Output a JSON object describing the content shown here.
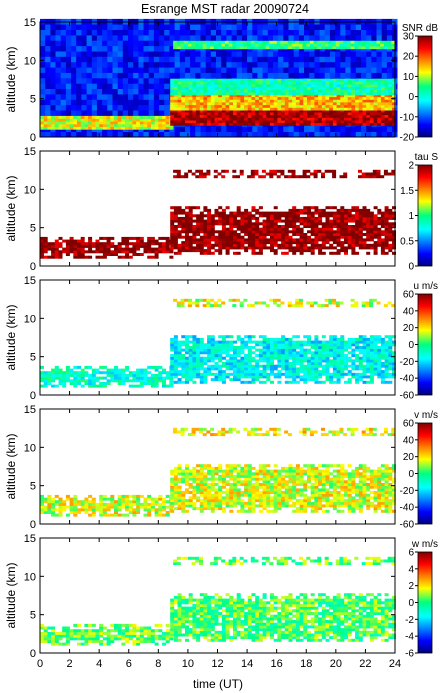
{
  "title": "Esrange MST radar 20090724",
  "xlabel": "time (UT)",
  "x_ticks": [
    0,
    2,
    4,
    6,
    8,
    10,
    12,
    14,
    16,
    18,
    20,
    22,
    24
  ],
  "chart_data": [
    {
      "type": "heatmap",
      "name": "SNR",
      "ylabel": "altitude (km)",
      "xlim": [
        0,
        24
      ],
      "ylim": [
        0,
        15
      ],
      "y_ticks": [
        0,
        5,
        10,
        15
      ],
      "colorbar": {
        "label": "SNR dB",
        "range": [
          -20,
          30
        ],
        "ticks": [
          -20,
          -10,
          0,
          10,
          20,
          30
        ]
      },
      "features": [
        {
          "t": [
            0,
            8.8
          ],
          "alt": [
            1,
            2.5
          ],
          "value": 12
        },
        {
          "t": [
            8.8,
            24
          ],
          "alt": [
            1.5,
            3.5
          ],
          "value": 28
        },
        {
          "t": [
            8.8,
            24
          ],
          "alt": [
            3.5,
            5.5
          ],
          "value": 15
        },
        {
          "t": [
            8.8,
            24
          ],
          "alt": [
            5.5,
            7.5
          ],
          "value": 2
        },
        {
          "t": [
            9,
            24
          ],
          "alt": [
            11.5,
            12.5
          ],
          "value": 5
        }
      ],
      "background_value": -14
    },
    {
      "type": "heatmap",
      "name": "tau",
      "ylabel": "altitude (km)",
      "xlim": [
        0,
        24
      ],
      "ylim": [
        0,
        15
      ],
      "y_ticks": [
        0,
        5,
        10,
        15
      ],
      "colorbar": {
        "label": "tau S",
        "range": [
          0,
          2
        ],
        "ticks": [
          0,
          0.5,
          1,
          1.5,
          2
        ]
      },
      "features": [
        {
          "t": [
            0,
            8.8
          ],
          "alt": [
            1,
            3.5
          ],
          "value": 2
        },
        {
          "t": [
            8.8,
            24
          ],
          "alt": [
            1.5,
            7.5
          ],
          "value": 2
        },
        {
          "t": [
            9,
            24
          ],
          "alt": [
            11.5,
            12.5
          ],
          "value": 2
        }
      ]
    },
    {
      "type": "heatmap",
      "name": "u",
      "ylabel": "altitude (km)",
      "xlim": [
        0,
        24
      ],
      "ylim": [
        0,
        15
      ],
      "y_ticks": [
        0,
        5,
        10,
        15
      ],
      "colorbar": {
        "label": "u m/s",
        "range": [
          -60,
          60
        ],
        "ticks": [
          -60,
          -40,
          -20,
          0,
          20,
          40,
          60
        ]
      },
      "features": [
        {
          "t": [
            0,
            8.8
          ],
          "alt": [
            1,
            3.5
          ],
          "value": -10
        },
        {
          "t": [
            8.8,
            24
          ],
          "alt": [
            1.5,
            7.5
          ],
          "value": -15
        },
        {
          "t": [
            9,
            24
          ],
          "alt": [
            11.5,
            12.5
          ],
          "value": 15
        }
      ]
    },
    {
      "type": "heatmap",
      "name": "v",
      "ylabel": "altitude (km)",
      "xlim": [
        0,
        24
      ],
      "ylim": [
        0,
        15
      ],
      "y_ticks": [
        0,
        5,
        10,
        15
      ],
      "colorbar": {
        "label": "v m/s",
        "range": [
          -60,
          60
        ],
        "ticks": [
          -60,
          -40,
          -20,
          0,
          20,
          40,
          60
        ]
      },
      "features": [
        {
          "t": [
            0,
            8.8
          ],
          "alt": [
            1,
            3.5
          ],
          "value": 15
        },
        {
          "t": [
            8.8,
            24
          ],
          "alt": [
            1.5,
            7.5
          ],
          "value": 15
        },
        {
          "t": [
            9,
            24
          ],
          "alt": [
            11.5,
            12.5
          ],
          "value": 18
        }
      ]
    },
    {
      "type": "heatmap",
      "name": "w",
      "ylabel": "altitude (km)",
      "xlim": [
        0,
        24
      ],
      "ylim": [
        0,
        15
      ],
      "y_ticks": [
        0,
        5,
        10,
        15
      ],
      "colorbar": {
        "label": "w m/s",
        "range": [
          -6,
          6
        ],
        "ticks": [
          -6,
          -4,
          -2,
          0,
          2,
          4,
          6
        ]
      },
      "features": [
        {
          "t": [
            0,
            8.8
          ],
          "alt": [
            1,
            3.5
          ],
          "value": 0.5
        },
        {
          "t": [
            8.8,
            24
          ],
          "alt": [
            1.5,
            7.5
          ],
          "value": 0.3
        },
        {
          "t": [
            9,
            24
          ],
          "alt": [
            11.5,
            12.5
          ],
          "value": 0.5
        }
      ]
    }
  ]
}
